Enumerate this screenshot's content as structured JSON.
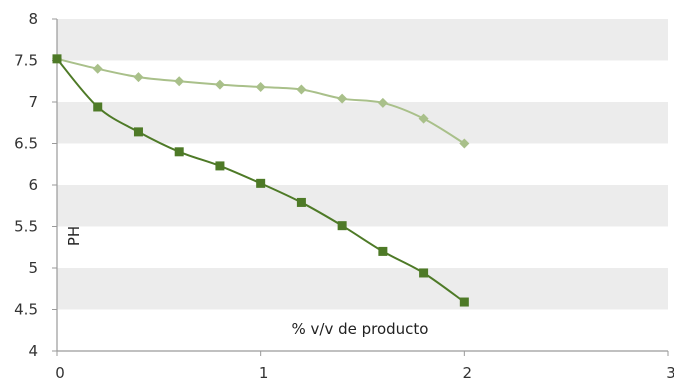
{
  "chart_data": {
    "type": "line",
    "xlabel": "% v/v de producto",
    "ylabel": "PH",
    "xlim": [
      0,
      3
    ],
    "ylim": [
      4,
      8
    ],
    "x_ticks": [
      0,
      1,
      2,
      3
    ],
    "y_ticks": [
      4,
      4.5,
      5,
      5.5,
      6,
      6.5,
      7,
      7.5,
      8
    ],
    "x_tick_labels": [
      "0",
      "1",
      "2",
      "3"
    ],
    "y_tick_labels": [
      "4",
      "4.5",
      "5",
      "5.5",
      "6",
      "6.5",
      "7",
      "7.5",
      "8"
    ],
    "grid": "alternating horizontal bands",
    "legend": "none",
    "series": [
      {
        "marker": "diamond",
        "color": "#a9c08a",
        "x": [
          0,
          0.2,
          0.4,
          0.6,
          0.8,
          1.0,
          1.2,
          1.4,
          1.6,
          1.8,
          2.0
        ],
        "values": [
          7.52,
          7.4,
          7.3,
          7.25,
          7.21,
          7.18,
          7.15,
          7.04,
          6.99,
          6.8,
          6.5
        ]
      },
      {
        "marker": "square",
        "color": "#4e7a27",
        "x": [
          0,
          0.2,
          0.4,
          0.6,
          0.8,
          1.0,
          1.2,
          1.4,
          1.6,
          1.8,
          2.0
        ],
        "values": [
          7.52,
          6.94,
          6.64,
          6.4,
          6.23,
          6.02,
          5.79,
          5.51,
          5.2,
          4.94,
          4.59
        ]
      }
    ],
    "band_color": "#ececec",
    "axis_color": "#9a9a9a"
  }
}
